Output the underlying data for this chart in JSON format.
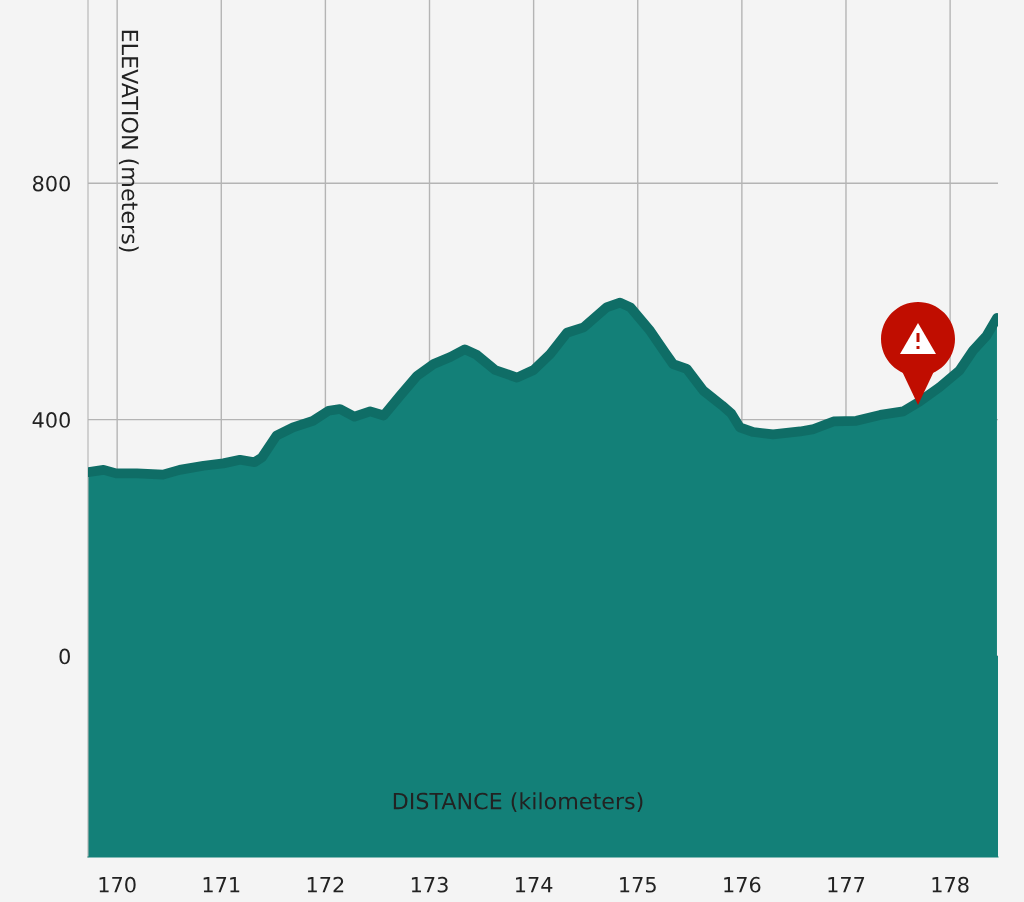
{
  "chart_data": {
    "type": "area",
    "xlabel": "DISTANCE (kilometers)",
    "ylabel": "ELEVATION (meters)",
    "x": [
      169.72,
      169.87,
      169.99,
      170.19,
      170.44,
      170.6,
      170.83,
      171.02,
      171.18,
      171.32,
      171.39,
      171.53,
      171.69,
      171.88,
      172.03,
      172.14,
      172.28,
      172.43,
      172.56,
      172.72,
      172.88,
      173.04,
      173.2,
      173.34,
      173.45,
      173.63,
      173.84,
      174.0,
      174.16,
      174.32,
      174.48,
      174.59,
      174.7,
      174.83,
      174.93,
      175.12,
      175.26,
      175.34,
      175.47,
      175.63,
      175.81,
      175.9,
      175.98,
      176.11,
      176.3,
      176.56,
      176.69,
      176.88,
      177.1,
      177.33,
      177.55,
      177.71,
      177.9,
      178.09,
      178.22,
      178.35,
      178.45
    ],
    "values": [
      311,
      315,
      309,
      309,
      307,
      315,
      322,
      326,
      332,
      328,
      336,
      373,
      387,
      398,
      415,
      418,
      405,
      414,
      407,
      441,
      474,
      494,
      506,
      519,
      510,
      484,
      471,
      484,
      511,
      547,
      556,
      573,
      590,
      598,
      590,
      550,
      514,
      494,
      486,
      449,
      424,
      410,
      387,
      379,
      375,
      380,
      384,
      397,
      398,
      408,
      414,
      431,
      455,
      483,
      517,
      542,
      572
    ],
    "color": "#138078",
    "bands": [
      {
        "axis": "y",
        "from": -340,
        "to": 0,
        "color": "#138078"
      }
    ],
    "xlim": [
      169.72,
      178.46
    ],
    "ylim": [
      -340,
      1110
    ],
    "xticks": [
      170,
      171,
      172,
      173,
      174,
      175,
      176,
      177,
      178
    ],
    "yticks": [
      0,
      400,
      800
    ],
    "grid": true
  }
}
